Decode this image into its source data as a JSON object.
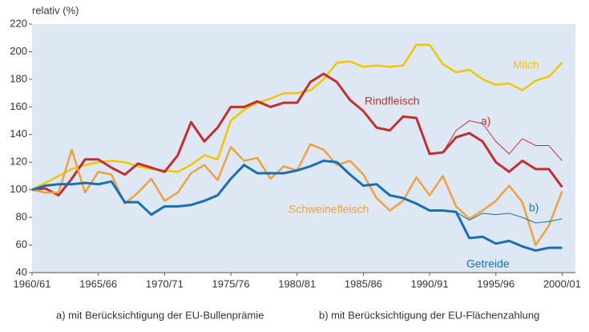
{
  "chart_data": {
    "type": "line",
    "y_label": "relativ (%)",
    "x": [
      1960,
      1961,
      1962,
      1963,
      1964,
      1965,
      1966,
      1967,
      1968,
      1969,
      1970,
      1971,
      1972,
      1973,
      1974,
      1975,
      1976,
      1977,
      1978,
      1979,
      1980,
      1981,
      1982,
      1983,
      1984,
      1985,
      1986,
      1987,
      1988,
      1989,
      1990,
      1991,
      1992,
      1993,
      1994,
      1995,
      1996,
      1997,
      1998,
      1999,
      2000
    ],
    "xlim": [
      1960,
      2001
    ],
    "xticks": [
      {
        "value": 1960,
        "label": "1960/61"
      },
      {
        "value": 1965,
        "label": "1965/66"
      },
      {
        "value": 1970,
        "label": "1970/71"
      },
      {
        "value": 1975,
        "label": "1975/76"
      },
      {
        "value": 1980,
        "label": "1980/81"
      },
      {
        "value": 1985,
        "label": "1985/86"
      },
      {
        "value": 1990,
        "label": "1990/91"
      },
      {
        "value": 1995,
        "label": "1995/96"
      },
      {
        "value": 2000,
        "label": "2000/01"
      }
    ],
    "ylim": [
      40,
      220
    ],
    "yticks": [
      40,
      60,
      80,
      100,
      120,
      140,
      160,
      180,
      200,
      220
    ],
    "series": [
      {
        "name": "Milch",
        "color": "#f5c400",
        "values": [
          100,
          105,
          110,
          115,
          118,
          120,
          121,
          120,
          117,
          115,
          114,
          113,
          118,
          125,
          122,
          150,
          158,
          163,
          166,
          170,
          170,
          172,
          180,
          192,
          193,
          189,
          190,
          189,
          190,
          205,
          205,
          191,
          185,
          187,
          180,
          176,
          177,
          172,
          179,
          182,
          192
        ]
      },
      {
        "name": "Rindfleisch",
        "color": "#c0302f",
        "values": [
          100,
          101,
          96,
          108,
          122,
          122,
          116,
          111,
          119,
          116,
          113,
          125,
          149,
          135,
          145,
          160,
          160,
          164,
          160,
          163,
          163,
          178,
          184,
          178,
          165,
          157,
          145,
          143,
          153,
          152,
          126,
          127,
          138,
          141,
          135,
          120,
          113,
          121,
          115,
          115,
          102
        ]
      },
      {
        "name": "Schweinefleisch",
        "color": "#f0a040",
        "values": [
          100,
          98,
          98,
          129,
          98,
          113,
          111,
          90,
          98,
          108,
          92,
          98,
          112,
          118,
          107,
          131,
          121,
          123,
          108,
          117,
          114,
          133,
          129,
          118,
          121,
          111,
          94,
          85,
          92,
          109,
          96,
          110,
          88,
          79,
          85,
          92,
          103,
          91,
          60,
          74,
          99
        ]
      },
      {
        "name": "Getreide",
        "color": "#1a6fb0",
        "values": [
          100,
          103,
          104,
          104,
          105,
          104,
          106,
          91,
          91,
          82,
          88,
          88,
          89,
          92,
          96,
          108,
          118,
          112,
          112,
          112,
          114,
          117,
          121,
          120,
          111,
          103,
          104,
          96,
          94,
          90,
          85,
          85,
          84,
          65,
          66,
          61,
          63,
          59,
          56,
          58,
          58
        ]
      },
      {
        "name": "a)",
        "color": "#c0302f",
        "values": [
          null,
          null,
          null,
          null,
          null,
          null,
          null,
          null,
          null,
          null,
          null,
          null,
          null,
          null,
          null,
          null,
          null,
          null,
          null,
          null,
          null,
          null,
          null,
          null,
          null,
          null,
          null,
          null,
          null,
          null,
          null,
          127,
          143,
          150,
          148,
          135,
          126,
          137,
          132,
          132,
          121
        ]
      },
      {
        "name": "b)",
        "color": "#1a6fb0",
        "values": [
          null,
          null,
          null,
          null,
          null,
          null,
          null,
          null,
          null,
          null,
          null,
          null,
          null,
          null,
          null,
          null,
          null,
          null,
          null,
          null,
          null,
          null,
          null,
          null,
          null,
          null,
          null,
          null,
          null,
          null,
          null,
          null,
          84,
          78,
          83,
          82,
          83,
          80,
          76,
          77,
          79
        ]
      }
    ],
    "footnotes": [
      "a) mit Berücksichtigung der EU-Bullenprämie",
      "b) mit Berücksichtigung der EU-Flächenzahlung"
    ]
  }
}
